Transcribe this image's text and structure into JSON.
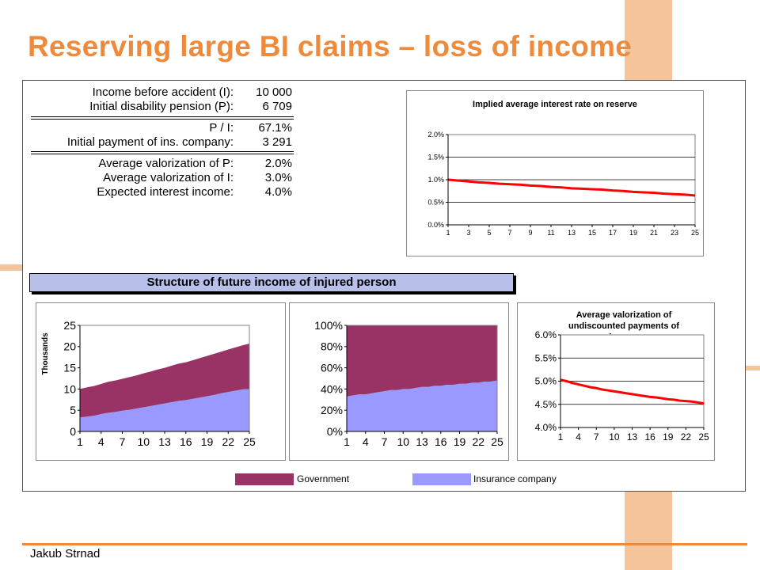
{
  "slide": {
    "title": "Reserving large BI claims – loss of income",
    "author": "Jakub Strnad"
  },
  "parameters": [
    {
      "label": "Income before accident (I):",
      "value": "10 000"
    },
    {
      "label": "Initial disability pension (P):",
      "value": "6 709"
    },
    {
      "label": "P / I:",
      "value": "67.1%"
    },
    {
      "label": "Initial payment of ins. company:",
      "value": "3 291"
    },
    {
      "label": "Average valorization of P:",
      "value": "2.0%"
    },
    {
      "label": "Average valorization of I:",
      "value": "3.0%"
    },
    {
      "label": "Expected interest income:",
      "value": "4.0%"
    }
  ],
  "banner": "Structure of future income of injured person",
  "legend": [
    {
      "name": "Government",
      "color": "#993366"
    },
    {
      "name": "Insurance company",
      "color": "#9999ff"
    }
  ],
  "chart_data": [
    {
      "id": "interest",
      "type": "line",
      "title": "Implied average interest rate on reserve",
      "x": [
        1,
        2,
        3,
        4,
        5,
        6,
        7,
        8,
        9,
        10,
        11,
        12,
        13,
        14,
        15,
        16,
        17,
        18,
        19,
        20,
        21,
        22,
        23,
        24,
        25
      ],
      "x_ticks": [
        "1",
        "3",
        "5",
        "7",
        "9",
        "11",
        "13",
        "15",
        "17",
        "19",
        "21",
        "23",
        "25"
      ],
      "y_ticks": [
        "0.0%",
        "0.5%",
        "1.0%",
        "1.5%",
        "2.0%"
      ],
      "ylim": [
        0,
        2.0
      ],
      "series": [
        {
          "color": "#ff0000",
          "values": [
            1.0,
            0.98,
            0.96,
            0.94,
            0.93,
            0.91,
            0.9,
            0.89,
            0.87,
            0.86,
            0.84,
            0.83,
            0.81,
            0.8,
            0.79,
            0.78,
            0.76,
            0.75,
            0.73,
            0.72,
            0.71,
            0.69,
            0.68,
            0.67,
            0.65
          ]
        }
      ],
      "grid": true
    },
    {
      "id": "absolute",
      "type": "area",
      "stacked": true,
      "ylabel": "Thousands",
      "x": [
        1,
        2,
        3,
        4,
        5,
        6,
        7,
        8,
        9,
        10,
        11,
        12,
        13,
        14,
        15,
        16,
        17,
        18,
        19,
        20,
        21,
        22,
        23,
        24,
        25
      ],
      "x_ticks": [
        "1",
        "4",
        "7",
        "10",
        "13",
        "16",
        "19",
        "22",
        "25"
      ],
      "y_ticks": [
        "0",
        "5",
        "10",
        "15",
        "20",
        "25"
      ],
      "ylim": [
        0,
        25
      ],
      "series": [
        {
          "name": "Insurance company",
          "color": "#9999ff",
          "values": [
            3.3,
            3.5,
            3.7,
            4.1,
            4.4,
            4.6,
            4.9,
            5.1,
            5.4,
            5.7,
            6.0,
            6.3,
            6.6,
            6.9,
            7.2,
            7.4,
            7.7,
            8.0,
            8.3,
            8.6,
            9.0,
            9.3,
            9.6,
            9.9,
            10.0
          ]
        },
        {
          "name": "Government",
          "color": "#993366",
          "values": [
            6.7,
            6.9,
            7.0,
            7.1,
            7.3,
            7.4,
            7.5,
            7.7,
            7.8,
            8.0,
            8.1,
            8.3,
            8.4,
            8.6,
            8.8,
            8.9,
            9.1,
            9.3,
            9.5,
            9.7,
            9.8,
            10.0,
            10.2,
            10.4,
            10.7
          ]
        }
      ]
    },
    {
      "id": "percent",
      "type": "area",
      "stacked": true,
      "x": [
        1,
        2,
        3,
        4,
        5,
        6,
        7,
        8,
        9,
        10,
        11,
        12,
        13,
        14,
        15,
        16,
        17,
        18,
        19,
        20,
        21,
        22,
        23,
        24,
        25
      ],
      "x_ticks": [
        "1",
        "4",
        "7",
        "10",
        "13",
        "16",
        "19",
        "22",
        "25"
      ],
      "y_ticks": [
        "0%",
        "20%",
        "40%",
        "60%",
        "80%",
        "100%"
      ],
      "ylim": [
        0,
        100
      ],
      "series": [
        {
          "name": "Insurance company",
          "color": "#9999ff",
          "values": [
            33,
            34,
            35,
            35,
            36,
            37,
            38,
            39,
            39,
            40,
            40,
            41,
            42,
            42,
            43,
            43,
            44,
            44,
            45,
            45,
            46,
            46,
            47,
            47,
            48
          ]
        },
        {
          "name": "Government",
          "color": "#993366",
          "values": [
            67,
            66,
            65,
            65,
            64,
            63,
            62,
            61,
            61,
            60,
            60,
            59,
            58,
            58,
            57,
            57,
            56,
            56,
            55,
            55,
            54,
            54,
            53,
            53,
            52
          ]
        }
      ]
    },
    {
      "id": "valorization",
      "type": "line",
      "title": "Average valorization of undiscounted payments of insurer",
      "title_lines": [
        "Average valorization of",
        "undiscounted payments of",
        "insurer"
      ],
      "x": [
        1,
        2,
        3,
        4,
        5,
        6,
        7,
        8,
        9,
        10,
        11,
        12,
        13,
        14,
        15,
        16,
        17,
        18,
        19,
        20,
        21,
        22,
        23,
        24,
        25
      ],
      "x_ticks": [
        "1",
        "4",
        "7",
        "10",
        "13",
        "16",
        "19",
        "22",
        "25"
      ],
      "y_ticks": [
        "4.0%",
        "4.5%",
        "5.0%",
        "5.5%",
        "6.0%"
      ],
      "ylim": [
        4.0,
        6.0
      ],
      "series": [
        {
          "color": "#ff0000",
          "values": [
            5.03,
            5.0,
            4.96,
            4.93,
            4.9,
            4.87,
            4.85,
            4.82,
            4.8,
            4.78,
            4.76,
            4.74,
            4.72,
            4.7,
            4.68,
            4.66,
            4.65,
            4.63,
            4.61,
            4.6,
            4.58,
            4.57,
            4.56,
            4.54,
            4.52
          ]
        }
      ],
      "grid": true
    }
  ]
}
